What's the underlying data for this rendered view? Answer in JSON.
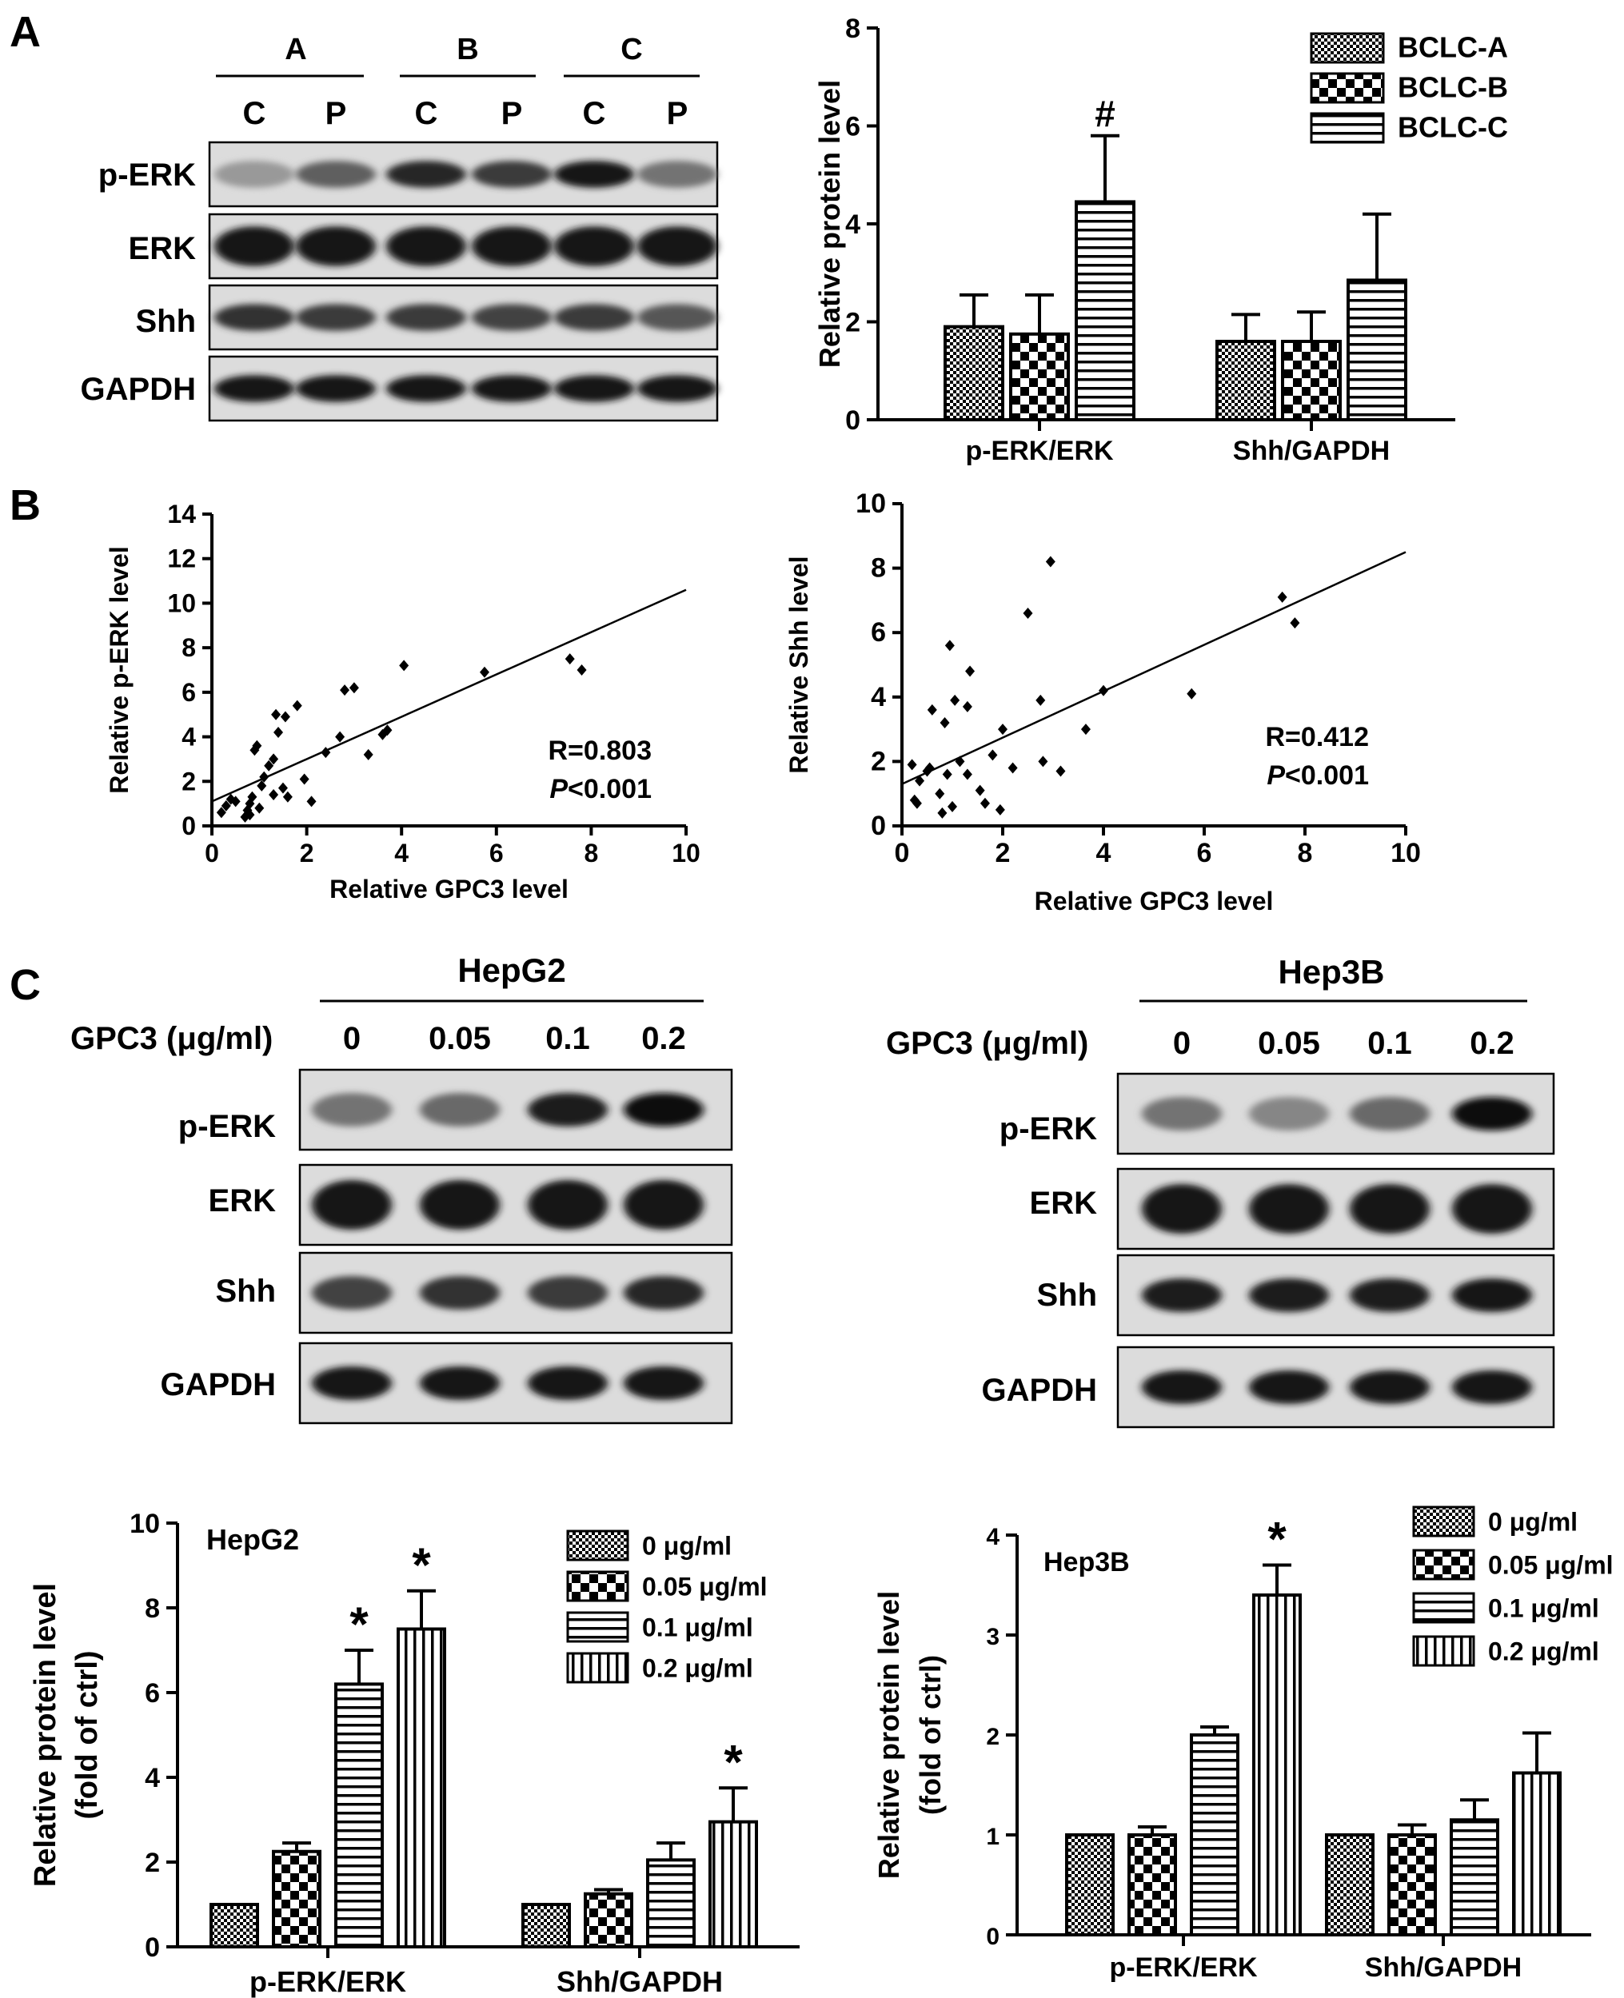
{
  "panels": {
    "a": "A",
    "b": "B",
    "c": "C"
  },
  "blot_a": {
    "groups": [
      "A",
      "B",
      "C"
    ],
    "lanes": [
      "C",
      "P",
      "C",
      "P",
      "C",
      "P"
    ],
    "rows": [
      "p-ERK",
      "ERK",
      "Shh",
      "GAPDH"
    ],
    "band_intensity": {
      "p-ERK": [
        0.25,
        0.55,
        0.85,
        0.75,
        0.95,
        0.45
      ],
      "ERK": [
        0.95,
        0.95,
        0.95,
        0.95,
        0.95,
        0.95
      ],
      "Shh": [
        0.8,
        0.75,
        0.75,
        0.7,
        0.75,
        0.6
      ],
      "GAPDH": [
        0.95,
        0.95,
        0.95,
        0.95,
        0.95,
        0.95
      ]
    }
  },
  "blot_hepg2": {
    "title": "HepG2",
    "dose_label": "GPC3 (μg/ml)",
    "doses": [
      "0",
      "0.05",
      "0.1",
      "0.2"
    ],
    "rows": [
      "p-ERK",
      "ERK",
      "Shh",
      "GAPDH"
    ],
    "band_intensity": {
      "p-ERK": [
        0.45,
        0.5,
        0.9,
        0.98
      ],
      "ERK": [
        0.95,
        0.95,
        0.95,
        0.95
      ],
      "Shh": [
        0.7,
        0.8,
        0.75,
        0.85
      ],
      "GAPDH": [
        0.95,
        0.95,
        0.95,
        0.95
      ]
    }
  },
  "blot_hep3b": {
    "title": "Hep3B",
    "dose_label": "GPC3 (μg/ml)",
    "doses": [
      "0",
      "0.05",
      "0.1",
      "0.2"
    ],
    "rows": [
      "p-ERK",
      "ERK",
      "Shh",
      "GAPDH"
    ],
    "band_intensity": {
      "p-ERK": [
        0.45,
        0.35,
        0.5,
        0.98
      ],
      "ERK": [
        0.95,
        0.95,
        0.95,
        0.95
      ],
      "Shh": [
        0.9,
        0.9,
        0.9,
        0.95
      ],
      "GAPDH": [
        0.95,
        0.95,
        0.95,
        0.95
      ]
    }
  },
  "chart_data": [
    {
      "type": "bar",
      "categories": [
        "p-ERK/ERK",
        "Shh/GAPDH"
      ],
      "series": [
        {
          "name": "BCLC-A",
          "values": [
            1.9,
            1.6
          ],
          "errors": [
            0.65,
            0.55
          ]
        },
        {
          "name": "BCLC-B",
          "values": [
            1.75,
            1.6
          ],
          "errors": [
            0.8,
            0.6
          ]
        },
        {
          "name": "BCLC-C",
          "values": [
            4.45,
            2.85
          ],
          "errors": [
            1.35,
            1.35
          ]
        }
      ],
      "annotations": [
        {
          "series": 2,
          "category": 0,
          "text": "#"
        }
      ],
      "title": "",
      "ylabel": "Relative protein level",
      "ylim": [
        0,
        8
      ],
      "yticks": [
        0,
        2,
        4,
        6,
        8
      ],
      "legend": "top-right"
    },
    {
      "type": "scatter",
      "xlabel": "Relative GPC3 level",
      "ylabel": "Relative p-ERK level",
      "xlim": [
        0,
        10
      ],
      "ylim": [
        0,
        14
      ],
      "xticks": [
        0,
        2,
        4,
        6,
        8,
        10
      ],
      "yticks": [
        0,
        2,
        4,
        6,
        8,
        10,
        12,
        14
      ],
      "points": [
        [
          0.2,
          0.6
        ],
        [
          0.3,
          0.9
        ],
        [
          0.4,
          1.2
        ],
        [
          0.5,
          1.1
        ],
        [
          0.7,
          0.4
        ],
        [
          0.75,
          0.7
        ],
        [
          0.8,
          0.5
        ],
        [
          0.8,
          1.0
        ],
        [
          0.85,
          1.3
        ],
        [
          0.9,
          3.4
        ],
        [
          0.95,
          3.6
        ],
        [
          1.0,
          0.8
        ],
        [
          1.05,
          1.8
        ],
        [
          1.1,
          2.2
        ],
        [
          1.2,
          2.7
        ],
        [
          1.3,
          3.0
        ],
        [
          1.3,
          1.4
        ],
        [
          1.35,
          5.0
        ],
        [
          1.4,
          4.2
        ],
        [
          1.5,
          1.7
        ],
        [
          1.55,
          4.9
        ],
        [
          1.6,
          1.3
        ],
        [
          1.8,
          5.4
        ],
        [
          1.95,
          2.1
        ],
        [
          2.1,
          1.1
        ],
        [
          2.4,
          3.3
        ],
        [
          2.7,
          4.0
        ],
        [
          2.8,
          6.1
        ],
        [
          3.0,
          6.2
        ],
        [
          3.3,
          3.2
        ],
        [
          3.6,
          4.1
        ],
        [
          3.7,
          4.3
        ],
        [
          4.05,
          7.2
        ],
        [
          5.75,
          6.9
        ],
        [
          7.55,
          7.5
        ],
        [
          7.8,
          7.0
        ]
      ],
      "trendline": [
        [
          0,
          1.1
        ],
        [
          10,
          10.6
        ]
      ],
      "annotation": {
        "r": "R=0.803",
        "p_symbol": "P",
        "p_value": "<0.001"
      }
    },
    {
      "type": "scatter",
      "xlabel": "Relative GPC3 level",
      "ylabel": "Relative Shh level",
      "xlim": [
        0,
        10
      ],
      "ylim": [
        0,
        10
      ],
      "xticks": [
        0,
        2,
        4,
        6,
        8,
        10
      ],
      "yticks": [
        0,
        2,
        4,
        6,
        8,
        10
      ],
      "points": [
        [
          0.2,
          1.9
        ],
        [
          0.25,
          0.8
        ],
        [
          0.3,
          0.7
        ],
        [
          0.35,
          1.4
        ],
        [
          0.5,
          1.7
        ],
        [
          0.55,
          1.8
        ],
        [
          0.6,
          3.6
        ],
        [
          0.75,
          1.0
        ],
        [
          0.8,
          0.4
        ],
        [
          0.85,
          3.2
        ],
        [
          0.9,
          1.6
        ],
        [
          0.95,
          5.6
        ],
        [
          1.0,
          0.6
        ],
        [
          1.05,
          3.9
        ],
        [
          1.15,
          2.0
        ],
        [
          1.3,
          1.6
        ],
        [
          1.3,
          3.7
        ],
        [
          1.35,
          4.8
        ],
        [
          1.55,
          1.1
        ],
        [
          1.65,
          0.7
        ],
        [
          1.8,
          2.2
        ],
        [
          1.95,
          0.5
        ],
        [
          2.0,
          3.0
        ],
        [
          2.2,
          1.8
        ],
        [
          2.5,
          6.6
        ],
        [
          2.75,
          3.9
        ],
        [
          2.8,
          2.0
        ],
        [
          2.95,
          8.2
        ],
        [
          3.15,
          1.7
        ],
        [
          3.65,
          3.0
        ],
        [
          4.0,
          4.2
        ],
        [
          5.75,
          4.1
        ],
        [
          7.55,
          7.1
        ],
        [
          7.8,
          6.3
        ]
      ],
      "trendline": [
        [
          0,
          1.3
        ],
        [
          10,
          8.5
        ]
      ],
      "annotation": {
        "r": "R=0.412",
        "p_symbol": "P",
        "p_value": "<0.001"
      }
    },
    {
      "type": "bar",
      "title": "HepG2",
      "categories": [
        "p-ERK/ERK",
        "Shh/GAPDH"
      ],
      "series": [
        {
          "name": "0 μg/ml",
          "values": [
            1.0,
            1.0
          ],
          "errors": [
            0,
            0
          ]
        },
        {
          "name": "0.05 μg/ml",
          "values": [
            2.25,
            1.25
          ],
          "errors": [
            0.2,
            0.1
          ]
        },
        {
          "name": "0.1 μg/ml",
          "values": [
            6.2,
            2.05
          ],
          "errors": [
            0.8,
            0.4
          ]
        },
        {
          "name": "0.2 μg/ml",
          "values": [
            7.5,
            2.95
          ],
          "errors": [
            0.9,
            0.8
          ]
        }
      ],
      "annotations": [
        {
          "series": 2,
          "category": 0,
          "text": "*"
        },
        {
          "series": 3,
          "category": 0,
          "text": "*"
        },
        {
          "series": 3,
          "category": 1,
          "text": "*"
        }
      ],
      "ylabel": "Relative protein level",
      "ylabel2": "(fold of ctrl)",
      "ylim": [
        0,
        10
      ],
      "yticks": [
        0,
        2,
        4,
        6,
        8,
        10
      ],
      "legend": "top-right"
    },
    {
      "type": "bar",
      "title": "Hep3B",
      "categories": [
        "p-ERK/ERK",
        "Shh/GAPDH"
      ],
      "series": [
        {
          "name": "0 μg/ml",
          "values": [
            1.0,
            1.0
          ],
          "errors": [
            0,
            0
          ]
        },
        {
          "name": "0.05 μg/ml",
          "values": [
            1.0,
            1.0
          ],
          "errors": [
            0.08,
            0.1
          ]
        },
        {
          "name": "0.1 μg/ml",
          "values": [
            2.0,
            1.15
          ],
          "errors": [
            0.08,
            0.2
          ]
        },
        {
          "name": "0.2 μg/ml",
          "values": [
            3.4,
            1.62
          ],
          "errors": [
            0.3,
            0.4
          ]
        }
      ],
      "annotations": [
        {
          "series": 3,
          "category": 0,
          "text": "*"
        }
      ],
      "ylabel": "Relative protein level",
      "ylabel2": "(fold of ctrl)",
      "ylim": [
        0,
        4
      ],
      "yticks": [
        0,
        1,
        2,
        3,
        4
      ],
      "legend": "top-right"
    }
  ],
  "colors": {
    "ink": "#000000",
    "paper": "#ffffff",
    "blot_bg": "#dcdcdc"
  }
}
